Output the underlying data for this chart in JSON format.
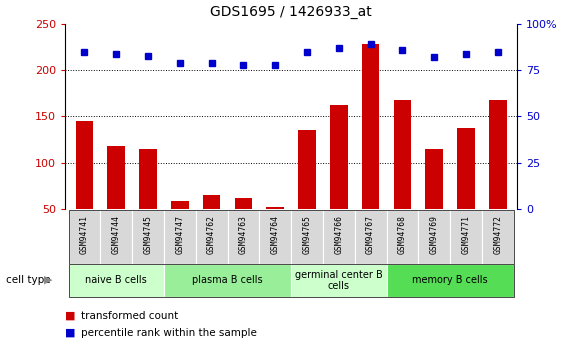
{
  "title": "GDS1695 / 1426933_at",
  "samples": [
    "GSM94741",
    "GSM94744",
    "GSM94745",
    "GSM94747",
    "GSM94762",
    "GSM94763",
    "GSM94764",
    "GSM94765",
    "GSM94766",
    "GSM94767",
    "GSM94768",
    "GSM94769",
    "GSM94771",
    "GSM94772"
  ],
  "transformed_count": [
    145,
    118,
    115,
    58,
    65,
    62,
    52,
    135,
    162,
    228,
    168,
    115,
    138,
    168
  ],
  "percentile_rank": [
    85,
    84,
    83,
    79,
    79,
    78,
    78,
    85,
    87,
    89,
    86,
    82,
    84,
    85
  ],
  "cell_groups": [
    {
      "label": "naive B cells",
      "start": 0,
      "end": 2,
      "color": "#ccffcc"
    },
    {
      "label": "plasma B cells",
      "start": 3,
      "end": 6,
      "color": "#99ee99"
    },
    {
      "label": "germinal center B\ncells",
      "start": 7,
      "end": 9,
      "color": "#ccffcc"
    },
    {
      "label": "memory B cells",
      "start": 10,
      "end": 13,
      "color": "#66dd66"
    }
  ],
  "bar_color": "#cc0000",
  "dot_color": "#0000cc",
  "ylim_left": [
    50,
    250
  ],
  "ylim_right": [
    0,
    100
  ],
  "yticks_left": [
    50,
    100,
    150,
    200,
    250
  ],
  "yticks_right": [
    0,
    25,
    50,
    75,
    100
  ],
  "ytick_labels_right": [
    "0",
    "25",
    "50",
    "75",
    "100%"
  ],
  "grid_values": [
    100,
    150,
    200
  ],
  "bar_width": 0.55,
  "background_color": "#ffffff",
  "left_tick_color": "#cc0000",
  "right_tick_color": "#0000cc"
}
